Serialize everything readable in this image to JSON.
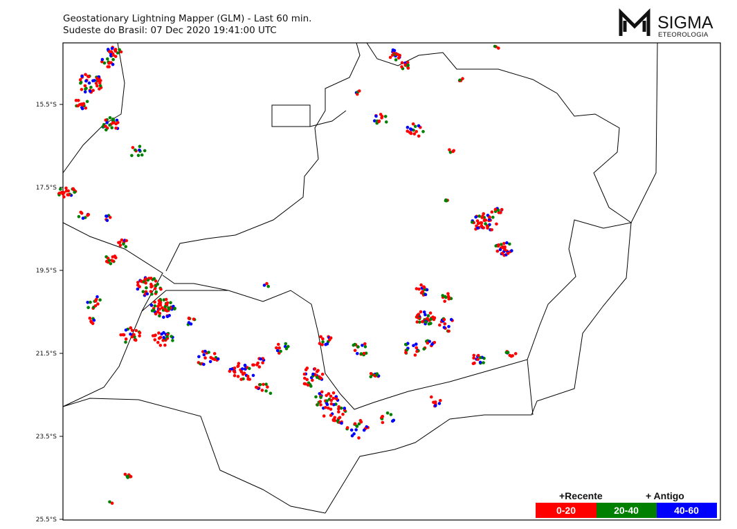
{
  "header": {
    "title": "Geostationary Lightning Mapper (GLM) - Last 60 min.",
    "subtitle": "Sudeste do Brasil:  07 Dec 2020 19:41:00 UTC"
  },
  "logo": {
    "name": "SIGMA",
    "tagline": "ETEOROLOGIA"
  },
  "map": {
    "lat_labels": [
      "15.5°S",
      "17.5°S",
      "19.5°S",
      "21.5°S",
      "23.5°S",
      "25.5°S"
    ]
  },
  "legend": {
    "recent": "+Recente",
    "old": "+ Antigo",
    "classes": [
      "0-20",
      "20-40",
      "40-60"
    ]
  }
}
